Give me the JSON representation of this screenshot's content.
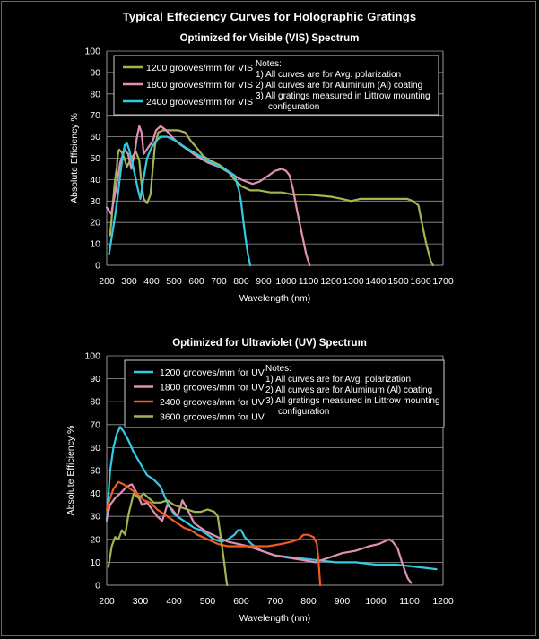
{
  "page": {
    "title": "Typical Effeciency Curves for Holographic Gratings",
    "background": "#000000",
    "text_color": "#ffffff",
    "grid_color": "#9a9a9a"
  },
  "chart_data": [
    {
      "type": "line",
      "title": "Optimized for Visible (VIS) Spectrum",
      "xlabel": "Wavelength (nm)",
      "ylabel": "Absolute Efficiency %",
      "xlim": [
        200,
        1700
      ],
      "ylim": [
        0,
        100
      ],
      "x_ticks": [
        200,
        300,
        400,
        500,
        600,
        700,
        800,
        900,
        1000,
        1100,
        1200,
        1300,
        1400,
        1500,
        1600,
        1700
      ],
      "y_ticks": [
        0,
        10,
        20,
        30,
        40,
        50,
        60,
        70,
        80,
        90,
        100
      ],
      "grid": "horizontal",
      "legend_position": "top-left",
      "notes": [
        "Notes:",
        "1) All curves are for Avg. polarization",
        "2) All curves are for Aluminum (Al) coating",
        "3) All gratings measured in Littrow mounting",
        "configuration"
      ],
      "series": [
        {
          "name": "1200 grooves/mm for VIS",
          "color": "#a3b552",
          "points": [
            [
              215,
              14
            ],
            [
              225,
              26
            ],
            [
              235,
              38
            ],
            [
              245,
              46
            ],
            [
              250,
              52
            ],
            [
              255,
              54
            ],
            [
              265,
              53
            ],
            [
              275,
              51
            ],
            [
              290,
              46
            ],
            [
              310,
              50
            ],
            [
              330,
              53
            ],
            [
              345,
              49
            ],
            [
              355,
              38
            ],
            [
              365,
              31
            ],
            [
              380,
              29
            ],
            [
              395,
              33
            ],
            [
              405,
              45
            ],
            [
              415,
              56
            ],
            [
              430,
              62
            ],
            [
              450,
              63
            ],
            [
              480,
              63
            ],
            [
              520,
              63
            ],
            [
              550,
              62
            ],
            [
              575,
              58
            ],
            [
              600,
              55
            ],
            [
              630,
              51
            ],
            [
              660,
              49
            ],
            [
              700,
              47
            ],
            [
              740,
              44
            ],
            [
              770,
              40
            ],
            [
              800,
              37
            ],
            [
              840,
              35
            ],
            [
              880,
              35
            ],
            [
              930,
              34
            ],
            [
              980,
              34
            ],
            [
              1030,
              33
            ],
            [
              1100,
              33
            ],
            [
              1200,
              32
            ],
            [
              1250,
              31
            ],
            [
              1290,
              30
            ],
            [
              1330,
              31
            ],
            [
              1380,
              31
            ],
            [
              1440,
              31
            ],
            [
              1500,
              31
            ],
            [
              1540,
              31
            ],
            [
              1565,
              30
            ],
            [
              1590,
              28
            ],
            [
              1605,
              20
            ],
            [
              1625,
              10
            ],
            [
              1645,
              2
            ],
            [
              1655,
              0
            ]
          ]
        },
        {
          "name": "1800 grooves/mm for VIS",
          "color": "#e28fb6",
          "points": [
            [
              200,
              27
            ],
            [
              220,
              24
            ],
            [
              240,
              35
            ],
            [
              260,
              48
            ],
            [
              280,
              54
            ],
            [
              295,
              52
            ],
            [
              310,
              45
            ],
            [
              325,
              53
            ],
            [
              335,
              60
            ],
            [
              345,
              65
            ],
            [
              355,
              62
            ],
            [
              365,
              52
            ],
            [
              385,
              55
            ],
            [
              405,
              58
            ],
            [
              420,
              63
            ],
            [
              440,
              65
            ],
            [
              465,
              63
            ],
            [
              490,
              60
            ],
            [
              520,
              57
            ],
            [
              560,
              54
            ],
            [
              600,
              51
            ],
            [
              650,
              48
            ],
            [
              700,
              46
            ],
            [
              750,
              43
            ],
            [
              800,
              40
            ],
            [
              850,
              38
            ],
            [
              880,
              39
            ],
            [
              910,
              41
            ],
            [
              950,
              44
            ],
            [
              980,
              45
            ],
            [
              1000,
              44
            ],
            [
              1015,
              42
            ],
            [
              1030,
              36
            ],
            [
              1050,
              25
            ],
            [
              1070,
              15
            ],
            [
              1090,
              5
            ],
            [
              1105,
              0
            ]
          ]
        },
        {
          "name": "2400 grooves/mm for VIS",
          "color": "#33cbe2",
          "points": [
            [
              210,
              5
            ],
            [
              225,
              15
            ],
            [
              240,
              25
            ],
            [
              250,
              33
            ],
            [
              260,
              42
            ],
            [
              270,
              50
            ],
            [
              280,
              56
            ],
            [
              290,
              57
            ],
            [
              300,
              54
            ],
            [
              320,
              45
            ],
            [
              340,
              35
            ],
            [
              350,
              31
            ],
            [
              360,
              38
            ],
            [
              380,
              50
            ],
            [
              400,
              55
            ],
            [
              420,
              58
            ],
            [
              440,
              60
            ],
            [
              470,
              60
            ],
            [
              510,
              58
            ],
            [
              550,
              55
            ],
            [
              600,
              52
            ],
            [
              650,
              49
            ],
            [
              700,
              46
            ],
            [
              740,
              44
            ],
            [
              770,
              42
            ],
            [
              790,
              35
            ],
            [
              800,
              29
            ],
            [
              810,
              20
            ],
            [
              820,
              12
            ],
            [
              830,
              5
            ],
            [
              840,
              0
            ]
          ]
        }
      ]
    },
    {
      "type": "line",
      "title": "Optimized for Ultraviolet (UV) Spectrum",
      "xlabel": "Wavelength (nm)",
      "ylabel": "Absolute Efficiency %",
      "xlim": [
        200,
        1200
      ],
      "ylim": [
        0,
        100
      ],
      "x_ticks": [
        200,
        300,
        400,
        500,
        600,
        700,
        800,
        900,
        1000,
        1100,
        1200
      ],
      "y_ticks": [
        0,
        10,
        20,
        30,
        40,
        50,
        60,
        70,
        80,
        90,
        100
      ],
      "grid": "horizontal",
      "legend_position": "top-left",
      "notes": [
        "Notes:",
        "1) All curves are for Avg. polarization",
        "2) All curves are for Aluminum (Al) coating",
        "3) All gratings measured in Littrow mounting",
        "configuration"
      ],
      "series": [
        {
          "name": "1200 grooves/mm for UV",
          "color": "#33cbe2",
          "points": [
            [
              200,
              28
            ],
            [
              210,
              50
            ],
            [
              220,
              60
            ],
            [
              230,
              66
            ],
            [
              240,
              69
            ],
            [
              250,
              67
            ],
            [
              265,
              63
            ],
            [
              280,
              58
            ],
            [
              300,
              53
            ],
            [
              320,
              48
            ],
            [
              340,
              46
            ],
            [
              360,
              43
            ],
            [
              380,
              36
            ],
            [
              400,
              31
            ],
            [
              420,
              29
            ],
            [
              440,
              27
            ],
            [
              460,
              25
            ],
            [
              480,
              24
            ],
            [
              500,
              22
            ],
            [
              520,
              20
            ],
            [
              540,
              19
            ],
            [
              560,
              20
            ],
            [
              580,
              22
            ],
            [
              590,
              24
            ],
            [
              600,
              24
            ],
            [
              610,
              21
            ],
            [
              630,
              18
            ],
            [
              660,
              15
            ],
            [
              700,
              13
            ],
            [
              760,
              12
            ],
            [
              820,
              11
            ],
            [
              880,
              10
            ],
            [
              940,
              10
            ],
            [
              1000,
              9
            ],
            [
              1060,
              9
            ],
            [
              1120,
              8
            ],
            [
              1180,
              7
            ]
          ]
        },
        {
          "name": "1800 grooves/mm for UV",
          "color": "#e28fb6",
          "points": [
            [
              200,
              29
            ],
            [
              210,
              35
            ],
            [
              225,
              38
            ],
            [
              240,
              40
            ],
            [
              260,
              43
            ],
            [
              275,
              44
            ],
            [
              290,
              40
            ],
            [
              305,
              35
            ],
            [
              320,
              36
            ],
            [
              335,
              33
            ],
            [
              350,
              30
            ],
            [
              365,
              28
            ],
            [
              380,
              35
            ],
            [
              395,
              33
            ],
            [
              410,
              30
            ],
            [
              425,
              37
            ],
            [
              440,
              33
            ],
            [
              460,
              27
            ],
            [
              480,
              25
            ],
            [
              500,
              23
            ],
            [
              530,
              21
            ],
            [
              560,
              19
            ],
            [
              590,
              18
            ],
            [
              620,
              17
            ],
            [
              660,
              15
            ],
            [
              700,
              13
            ],
            [
              740,
              12
            ],
            [
              780,
              11
            ],
            [
              820,
              10
            ],
            [
              860,
              12
            ],
            [
              900,
              14
            ],
            [
              940,
              15
            ],
            [
              980,
              17
            ],
            [
              1010,
              18
            ],
            [
              1040,
              20
            ],
            [
              1050,
              19
            ],
            [
              1065,
              16
            ],
            [
              1080,
              9
            ],
            [
              1095,
              3
            ],
            [
              1105,
              1
            ]
          ]
        },
        {
          "name": "2400 grooves/mm for UV",
          "color": "#f25a24",
          "points": [
            [
              200,
              33
            ],
            [
              210,
              38
            ],
            [
              220,
              42
            ],
            [
              235,
              45
            ],
            [
              250,
              44
            ],
            [
              270,
              42
            ],
            [
              290,
              40
            ],
            [
              310,
              37
            ],
            [
              330,
              36
            ],
            [
              350,
              33
            ],
            [
              370,
              31
            ],
            [
              390,
              29
            ],
            [
              410,
              27
            ],
            [
              430,
              25
            ],
            [
              450,
              24
            ],
            [
              470,
              22
            ],
            [
              500,
              20
            ],
            [
              530,
              18
            ],
            [
              560,
              17
            ],
            [
              600,
              17
            ],
            [
              640,
              17
            ],
            [
              680,
              17
            ],
            [
              720,
              18
            ],
            [
              750,
              19
            ],
            [
              770,
              20
            ],
            [
              785,
              22
            ],
            [
              800,
              22
            ],
            [
              815,
              21
            ],
            [
              825,
              18
            ],
            [
              830,
              10
            ],
            [
              835,
              0
            ]
          ]
        },
        {
          "name": "3600 grooves/mm for UV",
          "color": "#a3b552",
          "points": [
            [
              205,
              8
            ],
            [
              215,
              17
            ],
            [
              225,
              21
            ],
            [
              235,
              20
            ],
            [
              245,
              24
            ],
            [
              255,
              22
            ],
            [
              265,
              31
            ],
            [
              280,
              40
            ],
            [
              295,
              38
            ],
            [
              310,
              40
            ],
            [
              325,
              38
            ],
            [
              340,
              36
            ],
            [
              360,
              36
            ],
            [
              380,
              37
            ],
            [
              400,
              35
            ],
            [
              420,
              34
            ],
            [
              440,
              33
            ],
            [
              460,
              32
            ],
            [
              480,
              32
            ],
            [
              500,
              33
            ],
            [
              520,
              32
            ],
            [
              530,
              30
            ],
            [
              540,
              20
            ],
            [
              550,
              9
            ],
            [
              555,
              3
            ],
            [
              558,
              0
            ]
          ]
        }
      ]
    }
  ]
}
